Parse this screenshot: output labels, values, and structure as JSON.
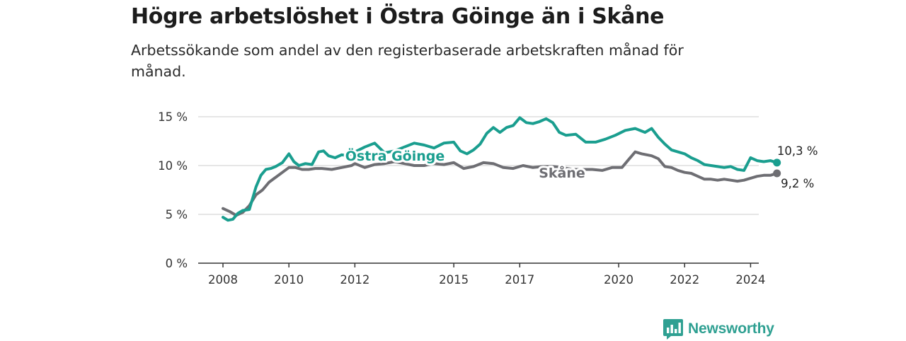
{
  "title": "Högre arbetslöshet i Östra Göinge än i Skåne",
  "subtitle": "Arbetssökande som andel av den registerbaserade arbetskraften månad för månad.",
  "brand": "Newsworthy",
  "colors": {
    "ostra": "#1a9e8f",
    "skane": "#6e6e73",
    "grid": "#dedede",
    "axis": "#333333"
  },
  "chart_data": {
    "type": "line",
    "title": "Högre arbetslöshet i Östra Göinge än i Skåne",
    "subtitle": "Arbetssökande som andel av den registerbaserade arbetskraften månad för månad.",
    "xlabel": "",
    "ylabel": "",
    "xlim": [
      2008,
      2025
    ],
    "ylim": [
      0,
      15
    ],
    "yticks": [
      0,
      5,
      10,
      15
    ],
    "ytick_labels": [
      "0 %",
      "5 %",
      "10 %",
      "15 %"
    ],
    "xticks": [
      2008,
      2010,
      2012,
      2015,
      2017,
      2020,
      2022,
      2024
    ],
    "xtick_labels": [
      "2008",
      "2010",
      "2012",
      "2015",
      "2017",
      "2020",
      "2022",
      "2024"
    ],
    "grid": true,
    "legend": "direct labels",
    "series": [
      {
        "name": "Östra Göinge",
        "color": "#1a9e8f",
        "end_label": "10,3 %",
        "x": [
          2008.0,
          2008.15,
          2008.3,
          2008.45,
          2008.6,
          2008.8,
          2009.0,
          2009.15,
          2009.3,
          2009.45,
          2009.6,
          2009.8,
          2010.0,
          2010.15,
          2010.3,
          2010.5,
          2010.7,
          2010.9,
          2011.05,
          2011.2,
          2011.4,
          2011.6,
          2011.8,
          2012.0,
          2012.3,
          2012.6,
          2012.9,
          2013.2,
          2013.5,
          2013.8,
          2014.1,
          2014.4,
          2014.7,
          2015.0,
          2015.2,
          2015.4,
          2015.6,
          2015.8,
          2016.0,
          2016.2,
          2016.4,
          2016.6,
          2016.8,
          2017.0,
          2017.2,
          2017.4,
          2017.6,
          2017.8,
          2018.0,
          2018.2,
          2018.4,
          2018.7,
          2019.0,
          2019.3,
          2019.6,
          2019.9,
          2020.2,
          2020.5,
          2020.8,
          2021.0,
          2021.2,
          2021.4,
          2021.6,
          2021.8,
          2022.0,
          2022.2,
          2022.4,
          2022.6,
          2022.8,
          2023.0,
          2023.2,
          2023.4,
          2023.6,
          2023.8,
          2024.0,
          2024.2,
          2024.4,
          2024.6,
          2024.8
        ],
        "values": [
          4.7,
          4.4,
          4.5,
          5.1,
          5.4,
          5.5,
          7.8,
          9.0,
          9.6,
          9.7,
          9.9,
          10.3,
          11.2,
          10.4,
          10.0,
          10.2,
          10.1,
          11.4,
          11.5,
          11.0,
          10.8,
          11.1,
          11.0,
          11.4,
          11.9,
          12.3,
          11.3,
          11.5,
          11.9,
          12.3,
          12.1,
          11.8,
          12.3,
          12.4,
          11.5,
          11.2,
          11.6,
          12.2,
          13.3,
          13.9,
          13.4,
          13.9,
          14.1,
          14.9,
          14.4,
          14.3,
          14.5,
          14.8,
          14.4,
          13.4,
          13.1,
          13.2,
          12.4,
          12.4,
          12.7,
          13.1,
          13.6,
          13.8,
          13.4,
          13.8,
          12.9,
          12.2,
          11.6,
          11.4,
          11.2,
          10.8,
          10.5,
          10.1,
          10.0,
          9.9,
          9.8,
          9.9,
          9.6,
          9.5,
          10.8,
          10.5,
          10.4,
          10.5,
          10.3
        ]
      },
      {
        "name": "Skåne",
        "color": "#6e6e73",
        "end_label": "9,2 %",
        "x": [
          2008.0,
          2008.2,
          2008.4,
          2008.6,
          2008.8,
          2009.0,
          2009.2,
          2009.4,
          2009.6,
          2009.8,
          2010.0,
          2010.2,
          2010.4,
          2010.6,
          2010.8,
          2011.0,
          2011.3,
          2011.6,
          2011.9,
          2012.0,
          2012.3,
          2012.6,
          2012.9,
          2013.2,
          2013.5,
          2013.8,
          2014.1,
          2014.4,
          2014.7,
          2015.0,
          2015.3,
          2015.6,
          2015.9,
          2016.2,
          2016.5,
          2016.8,
          2017.1,
          2017.4,
          2017.7,
          2018.0,
          2018.3,
          2018.6,
          2018.9,
          2019.2,
          2019.5,
          2019.8,
          2020.1,
          2020.3,
          2020.5,
          2020.7,
          2021.0,
          2021.2,
          2021.4,
          2021.6,
          2021.8,
          2022.0,
          2022.2,
          2022.4,
          2022.6,
          2022.8,
          2023.0,
          2023.2,
          2023.4,
          2023.6,
          2023.8,
          2024.0,
          2024.2,
          2024.4,
          2024.6,
          2024.8
        ],
        "values": [
          5.6,
          5.3,
          4.9,
          5.2,
          5.9,
          7.0,
          7.5,
          8.3,
          8.8,
          9.3,
          9.8,
          9.8,
          9.6,
          9.6,
          9.7,
          9.7,
          9.6,
          9.8,
          10.0,
          10.2,
          9.8,
          10.1,
          10.2,
          10.4,
          10.2,
          10.0,
          10.0,
          10.2,
          10.1,
          10.3,
          9.7,
          9.9,
          10.3,
          10.2,
          9.8,
          9.7,
          10.0,
          9.8,
          9.9,
          9.9,
          9.8,
          9.6,
          9.6,
          9.6,
          9.5,
          9.8,
          9.8,
          10.6,
          11.4,
          11.2,
          11.0,
          10.7,
          9.9,
          9.8,
          9.5,
          9.3,
          9.2,
          8.9,
          8.6,
          8.6,
          8.5,
          8.6,
          8.5,
          8.4,
          8.5,
          8.7,
          8.9,
          9.0,
          9.0,
          9.2
        ]
      }
    ],
    "annotations": [
      {
        "text": "Östra Göinge",
        "series": "Östra Göinge"
      },
      {
        "text": "Skåne",
        "series": "Skåne"
      }
    ]
  }
}
